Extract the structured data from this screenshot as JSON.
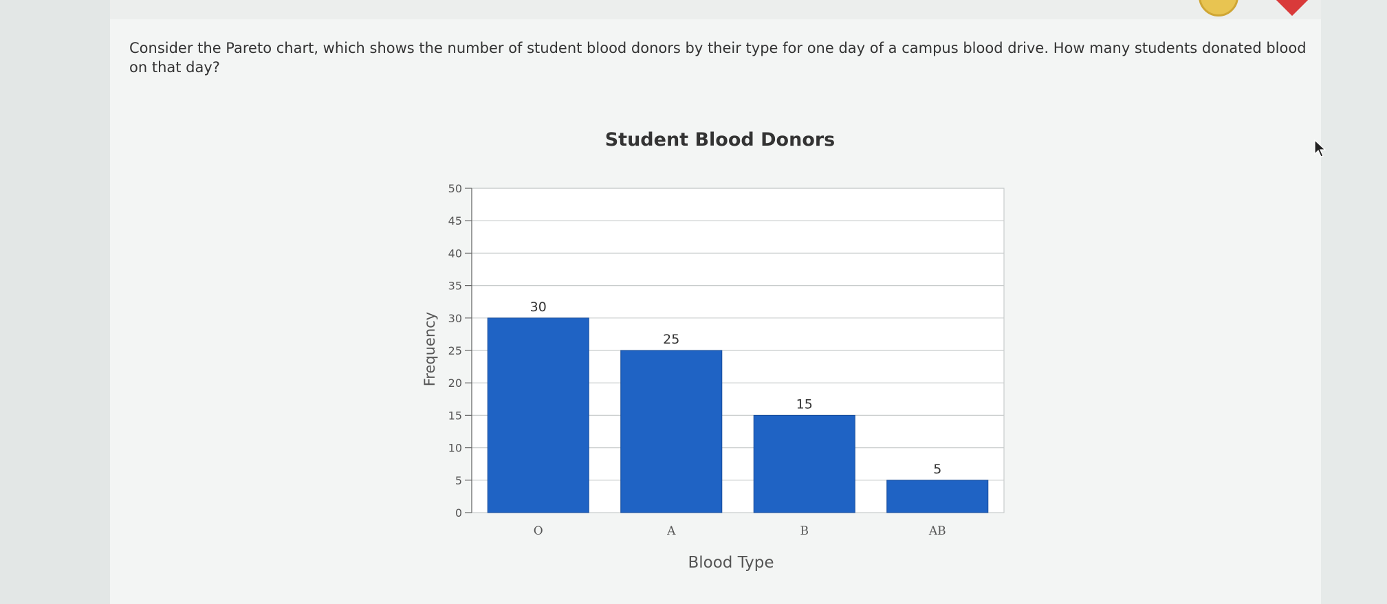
{
  "question": {
    "text": "Consider the Pareto chart, which shows the number of student blood donors by their type for one day of a campus blood drive. How many students donated blood on that day?"
  },
  "icons": {
    "top_ring": "status-ring-icon",
    "top_badge": "heart-badge-icon",
    "cursor": "mouse-pointer-icon"
  },
  "colors": {
    "bar": "#1f63c4",
    "bar_border": "#174c9a",
    "grid": "#c8cccc"
  },
  "chart_data": {
    "type": "bar",
    "title": "Student Blood Donors",
    "xlabel": "Blood Type",
    "ylabel": "Frequency",
    "categories": [
      "O",
      "A",
      "B",
      "AB"
    ],
    "values": [
      30,
      25,
      15,
      5
    ],
    "data_labels": [
      "30",
      "25",
      "15",
      "5"
    ],
    "ylim": [
      0,
      50
    ],
    "yticks": [
      0,
      5,
      10,
      15,
      20,
      25,
      30,
      35,
      40,
      45,
      50
    ],
    "grid": true
  }
}
